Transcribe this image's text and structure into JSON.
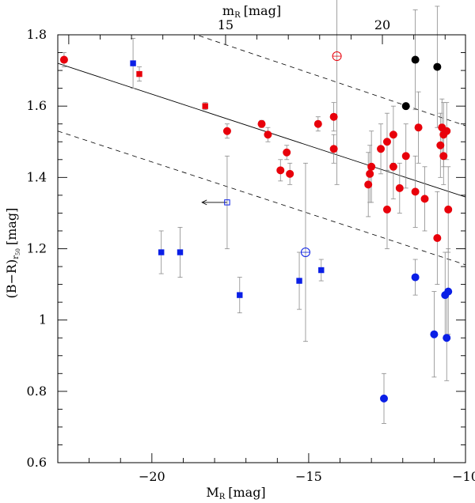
{
  "chart_data": {
    "type": "scatter",
    "xlabel": "M",
    "xlabel_sub": "R",
    "xlabel_unit": "[mag]",
    "ylabel": "(B−R)",
    "ylabel_sub": "r",
    "ylabel_subsub": "50",
    "ylabel_unit": "[mag]",
    "top_label": "m",
    "top_label_sub": "R",
    "top_label_unit": "[mag]",
    "xlim": [
      -23,
      -10
    ],
    "ylim": [
      0.6,
      1.8
    ],
    "x_ticks": [
      -20,
      -15,
      -10
    ],
    "x_tick_labels": [
      "−20",
      "−15",
      "−10"
    ],
    "y_ticks": [
      0.6,
      0.8,
      1.0,
      1.2,
      1.4,
      1.6,
      1.8
    ],
    "y_tick_labels": [
      "0.6",
      "0.8",
      "1",
      "1.2",
      "1.4",
      "1.6",
      "1.8"
    ],
    "top_ticks_absmag": [
      -17.65,
      -12.65
    ],
    "top_tick_labels": [
      "15",
      "20"
    ],
    "fit_line": {
      "x": [
        -23,
        -10
      ],
      "y": [
        1.72,
        1.345
      ]
    },
    "dashed_upper": {
      "x": [
        -20.6,
        -10
      ],
      "y": [
        1.86,
        1.545
      ]
    },
    "dashed_lower": {
      "x": [
        -23,
        -10
      ],
      "y": [
        1.53,
        1.155
      ]
    },
    "arrow": {
      "from_x": -17.6,
      "to_x": -18.4,
      "y": 1.33
    },
    "series": [
      {
        "name": "red filled circles",
        "marker": "circle",
        "fill": true,
        "color": "#e8000b",
        "points": [
          {
            "x": -22.8,
            "y": 1.73,
            "err": 0.02
          },
          {
            "x": -17.6,
            "y": 1.53,
            "err": 0.02
          },
          {
            "x": -16.5,
            "y": 1.55,
            "err": 0.01
          },
          {
            "x": -16.3,
            "y": 1.52,
            "err": 0.02
          },
          {
            "x": -15.9,
            "y": 1.42,
            "err": 0.03
          },
          {
            "x": -15.7,
            "y": 1.47,
            "err": 0.02
          },
          {
            "x": -15.6,
            "y": 1.41,
            "err": 0.03
          },
          {
            "x": -14.7,
            "y": 1.55,
            "err": 0.02
          },
          {
            "x": -14.2,
            "y": 1.57,
            "err": 0.04
          },
          {
            "x": -14.2,
            "y": 1.48,
            "err": 0.04
          },
          {
            "x": -13.1,
            "y": 1.38,
            "err": 0.09
          },
          {
            "x": -13.05,
            "y": 1.41,
            "err": 0.08
          },
          {
            "x": -13.0,
            "y": 1.43,
            "err": 0.1
          },
          {
            "x": -12.7,
            "y": 1.48,
            "err": 0.07
          },
          {
            "x": -12.5,
            "y": 1.5,
            "err": 0.08
          },
          {
            "x": -12.5,
            "y": 1.31,
            "err": 0.11
          },
          {
            "x": -12.3,
            "y": 1.52,
            "err": 0.08
          },
          {
            "x": -12.3,
            "y": 1.43,
            "err": 0.09
          },
          {
            "x": -12.1,
            "y": 1.37,
            "err": 0.07
          },
          {
            "x": -11.9,
            "y": 1.46,
            "err": 0.09
          },
          {
            "x": -11.6,
            "y": 1.36,
            "err": 0.1
          },
          {
            "x": -11.5,
            "y": 1.54,
            "err": 0.1
          },
          {
            "x": -11.3,
            "y": 1.34,
            "err": 0.09
          },
          {
            "x": -10.9,
            "y": 1.23,
            "err": 0.13
          },
          {
            "x": -10.8,
            "y": 1.49,
            "err": 0.09
          },
          {
            "x": -10.75,
            "y": 1.54,
            "err": 0.08
          },
          {
            "x": -10.7,
            "y": 1.52,
            "err": 0.09
          },
          {
            "x": -10.7,
            "y": 1.46,
            "err": 0.08
          },
          {
            "x": -10.6,
            "y": 1.53,
            "err": 0.08
          },
          {
            "x": -10.55,
            "y": 1.31,
            "err": 0.12
          }
        ]
      },
      {
        "name": "red filled squares",
        "marker": "square",
        "fill": true,
        "color": "#e8000b",
        "points": [
          {
            "x": -20.4,
            "y": 1.69,
            "err": 0.02
          },
          {
            "x": -18.3,
            "y": 1.6,
            "err": 0.01
          }
        ]
      },
      {
        "name": "red open circle",
        "marker": "circle",
        "fill": false,
        "color": "#e8000b",
        "points": [
          {
            "x": -14.1,
            "y": 1.74,
            "err": 0.36
          }
        ]
      },
      {
        "name": "black filled circles",
        "marker": "circle",
        "fill": true,
        "color": "#000000",
        "points": [
          {
            "x": -11.9,
            "y": 1.6,
            "err": 0.0
          },
          {
            "x": -11.6,
            "y": 1.73,
            "err": 0.14
          },
          {
            "x": -10.9,
            "y": 1.71,
            "err": 0.17
          }
        ]
      },
      {
        "name": "blue filled squares",
        "marker": "square",
        "fill": true,
        "color": "#0a1fe6",
        "points": [
          {
            "x": -20.6,
            "y": 1.72,
            "err": 0.07
          },
          {
            "x": -19.7,
            "y": 1.19,
            "err": 0.06
          },
          {
            "x": -19.1,
            "y": 1.19,
            "err": 0.07
          },
          {
            "x": -17.2,
            "y": 1.07,
            "err": 0.05
          },
          {
            "x": -15.3,
            "y": 1.11,
            "err": 0.08
          },
          {
            "x": -14.6,
            "y": 1.14,
            "err": 0.03
          }
        ]
      },
      {
        "name": "blue open square",
        "marker": "square",
        "fill": false,
        "color": "#0a1fe6",
        "points": [
          {
            "x": -17.6,
            "y": 1.33,
            "err": 0.13
          }
        ]
      },
      {
        "name": "blue open circle",
        "marker": "circle",
        "fill": false,
        "color": "#0a1fe6",
        "points": [
          {
            "x": -15.1,
            "y": 1.19,
            "err": 0.25
          }
        ]
      },
      {
        "name": "blue filled circles",
        "marker": "circle",
        "fill": true,
        "color": "#0a1fe6",
        "points": [
          {
            "x": -12.6,
            "y": 0.78,
            "err": 0.07
          },
          {
            "x": -11.6,
            "y": 1.12,
            "err": 0.05
          },
          {
            "x": -11.0,
            "y": 0.96,
            "err": 0.12
          },
          {
            "x": -10.65,
            "y": 1.07,
            "err": 0.12
          },
          {
            "x": -10.6,
            "y": 0.95,
            "err": 0.12
          },
          {
            "x": -10.55,
            "y": 1.08,
            "err": 0.12
          }
        ]
      }
    ]
  }
}
